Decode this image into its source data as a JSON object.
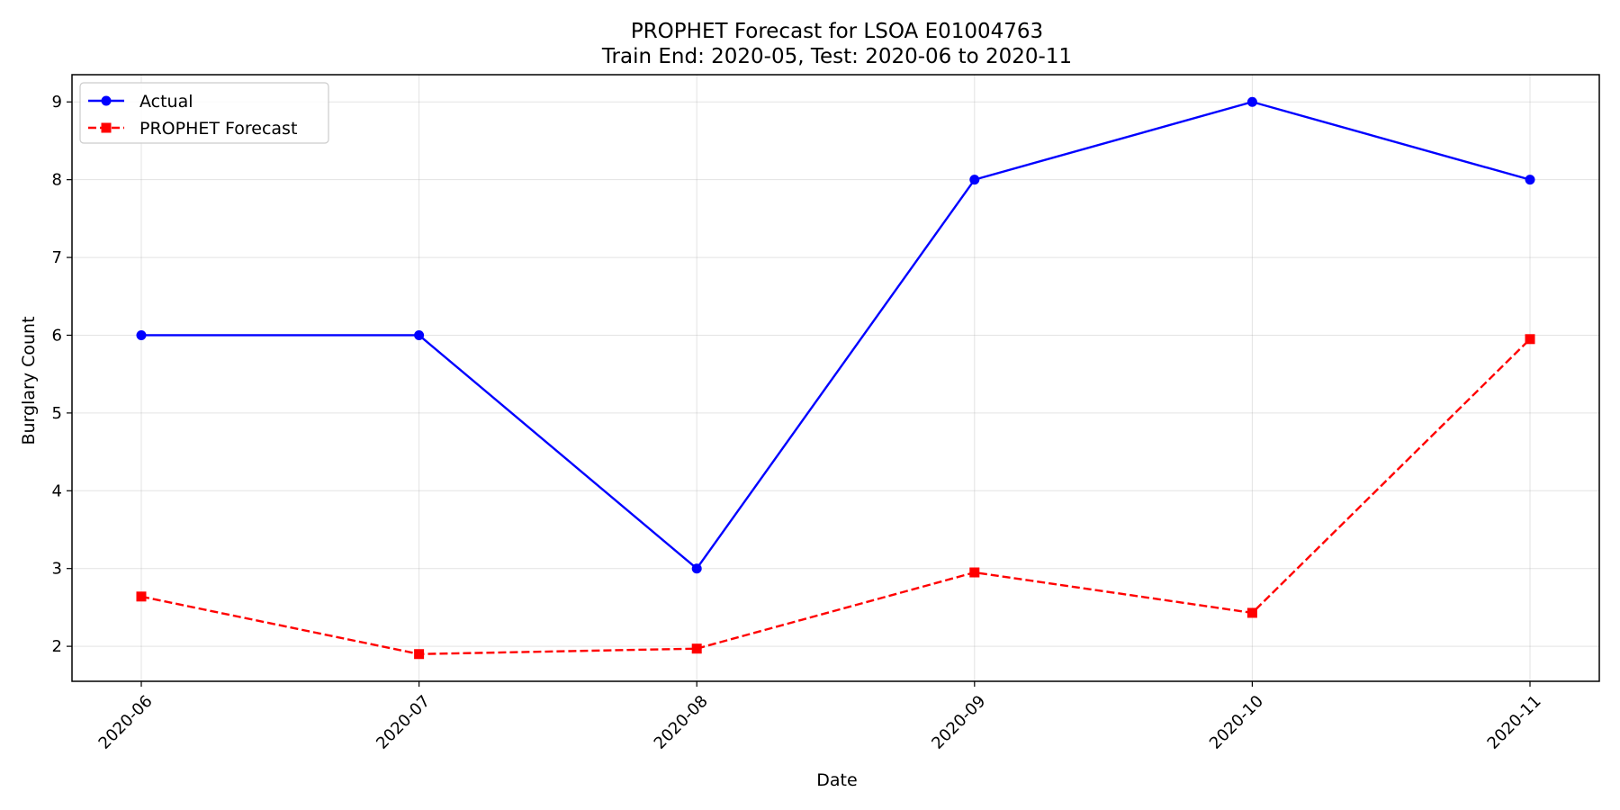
{
  "chart_data": {
    "type": "line",
    "title_line1": "PROPHET Forecast for LSOA E01004763",
    "title_line2": "Train End: 2020-05, Test: 2020-06 to 2020-11",
    "xlabel": "Date",
    "ylabel": "Burglary Count",
    "categories": [
      "2020-06",
      "2020-07",
      "2020-08",
      "2020-09",
      "2020-10",
      "2020-11"
    ],
    "yticks": [
      2,
      3,
      4,
      5,
      6,
      7,
      8,
      9
    ],
    "ylim": [
      1.55,
      9.35
    ],
    "grid": true,
    "legend_position": "top-left",
    "series": [
      {
        "name": "Actual",
        "color": "#0000ff",
        "style": "solid",
        "marker": "circle",
        "values": [
          6,
          6,
          3,
          8,
          9,
          8
        ]
      },
      {
        "name": "PROPHET Forecast",
        "color": "#ff0000",
        "style": "dashed",
        "marker": "square",
        "values": [
          2.64,
          1.9,
          1.97,
          2.95,
          2.43,
          5.95
        ]
      }
    ]
  }
}
